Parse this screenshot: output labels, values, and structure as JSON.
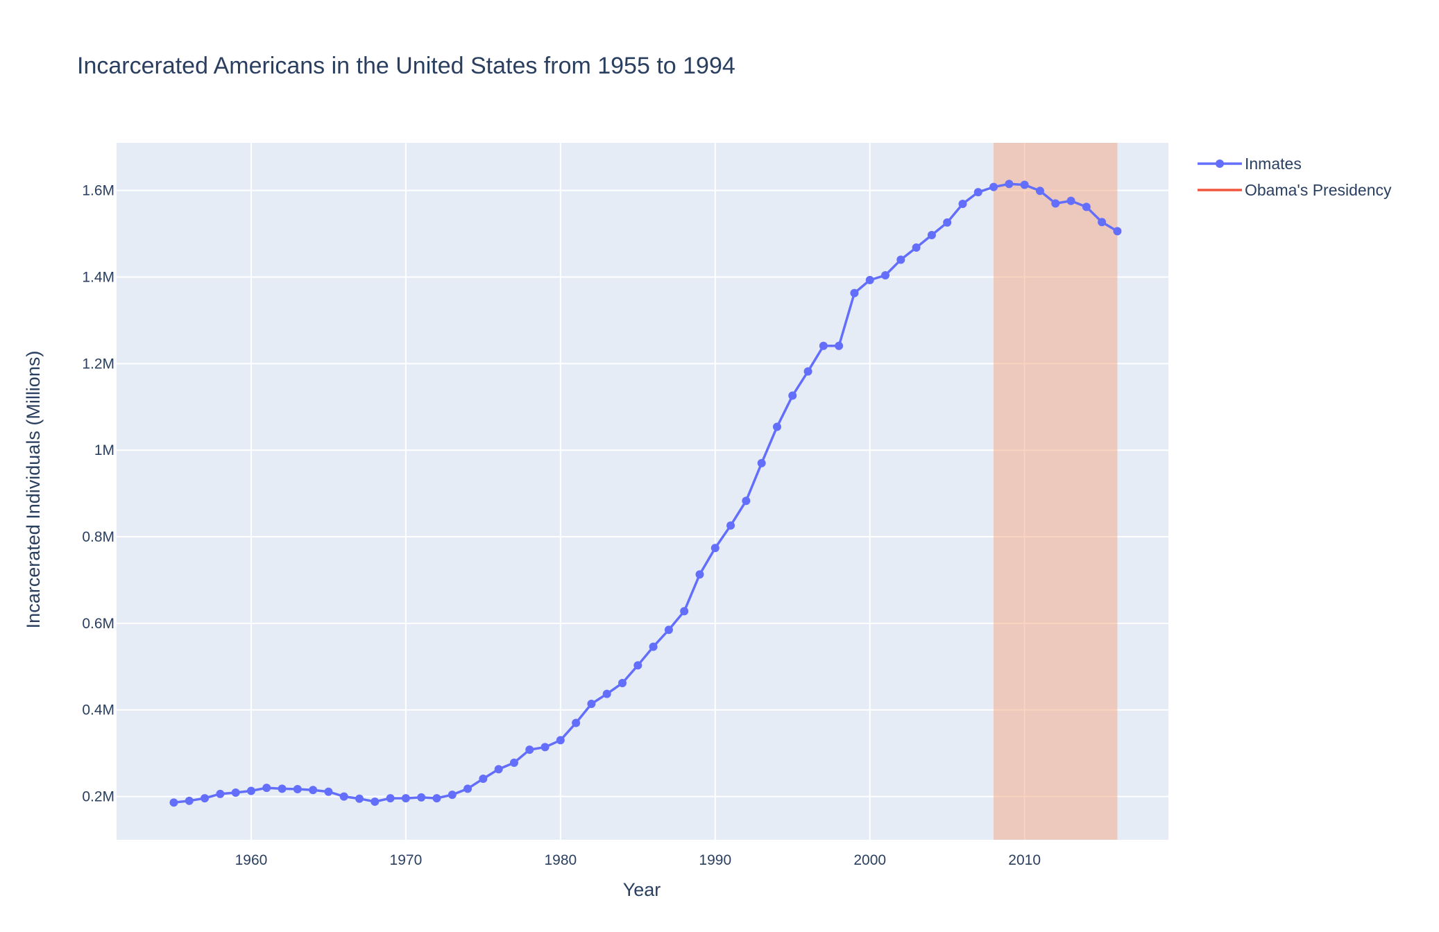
{
  "chart_data": {
    "type": "line",
    "title": "Incarcerated Americans in the United States from 1955 to 1994",
    "xlabel": "Year",
    "ylabel": "Incarcerated Individuals (Millions)",
    "xlim": [
      1951.3,
      2019.3
    ],
    "ylim": [
      0.1,
      1.71
    ],
    "x_ticks": [
      1960,
      1970,
      1980,
      1990,
      2000,
      2010
    ],
    "x_tick_labels": [
      "1960",
      "1970",
      "1980",
      "1990",
      "2000",
      "2010"
    ],
    "y_ticks": [
      0.2,
      0.4,
      0.6,
      0.8,
      1.0,
      1.2,
      1.4,
      1.6
    ],
    "y_tick_labels": [
      "0.2M",
      "0.4M",
      "0.6M",
      "0.8M",
      "1M",
      "1.2M",
      "1.4M",
      "1.6M"
    ],
    "grid": true,
    "legend_position": "top-right",
    "series": [
      {
        "name": "Inmates",
        "color": "#636efa",
        "mode": "lines+markers",
        "x": [
          1955,
          1956,
          1957,
          1958,
          1959,
          1960,
          1961,
          1962,
          1963,
          1964,
          1965,
          1966,
          1967,
          1968,
          1969,
          1970,
          1971,
          1972,
          1973,
          1974,
          1975,
          1976,
          1977,
          1978,
          1979,
          1980,
          1981,
          1982,
          1983,
          1984,
          1985,
          1986,
          1987,
          1988,
          1989,
          1990,
          1991,
          1992,
          1993,
          1994,
          1995,
          1996,
          1997,
          1998,
          1999,
          2000,
          2001,
          2002,
          2003,
          2004,
          2005,
          2006,
          2007,
          2008,
          2009,
          2010,
          2011,
          2012,
          2013,
          2014,
          2015,
          2016
        ],
        "y": [
          0.186,
          0.19,
          0.196,
          0.206,
          0.209,
          0.213,
          0.22,
          0.218,
          0.217,
          0.215,
          0.211,
          0.2,
          0.195,
          0.188,
          0.196,
          0.196,
          0.198,
          0.196,
          0.204,
          0.218,
          0.241,
          0.263,
          0.278,
          0.308,
          0.314,
          0.33,
          0.37,
          0.414,
          0.437,
          0.462,
          0.503,
          0.546,
          0.585,
          0.628,
          0.713,
          0.774,
          0.826,
          0.883,
          0.97,
          1.054,
          1.126,
          1.182,
          1.241,
          1.241,
          1.363,
          1.393,
          1.404,
          1.44,
          1.468,
          1.497,
          1.526,
          1.569,
          1.596,
          1.608,
          1.615,
          1.613,
          1.599,
          1.57,
          1.576,
          1.562,
          1.527,
          1.506
        ]
      },
      {
        "name": "Obama's Presidency",
        "color": "#ef553b",
        "mode": "lines",
        "x": [],
        "y": []
      }
    ],
    "shaded_regions": [
      {
        "x0": 2008,
        "x1": 2016,
        "color": "#f4a582",
        "opacity": 0.5
      }
    ]
  }
}
